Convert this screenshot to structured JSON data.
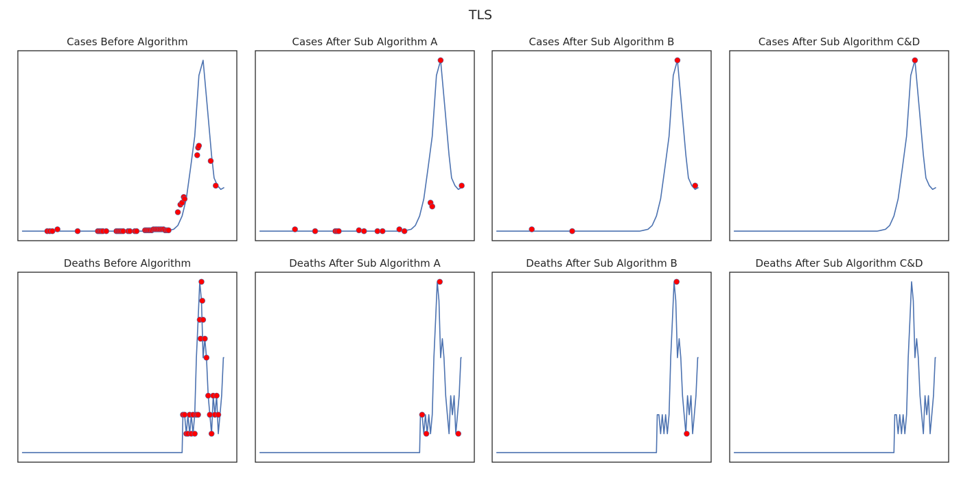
{
  "figure": {
    "title": "TLS"
  },
  "colors": {
    "line": "#4c72b0",
    "marker": "#ff0000",
    "frame": "#262626",
    "background": "#ffffff"
  },
  "chart_data": [
    {
      "type": "line",
      "title": "Cases Before Algorithm",
      "xlabel": "",
      "ylabel": "",
      "grid": false,
      "xlim": [
        -5,
        255
      ],
      "ylim": [
        -5,
        95
      ],
      "x": [
        0,
        5,
        10,
        15,
        20,
        25,
        30,
        35,
        40,
        45,
        50,
        55,
        60,
        65,
        70,
        75,
        80,
        85,
        90,
        95,
        100,
        105,
        110,
        115,
        120,
        125,
        130,
        135,
        140,
        145,
        150,
        155,
        160,
        165,
        170,
        175,
        180,
        185,
        190,
        195,
        200,
        205,
        210,
        215,
        220,
        225,
        228,
        232,
        236,
        240
      ],
      "y": [
        0,
        0,
        0,
        0,
        0,
        0,
        0,
        0,
        0,
        0,
        0,
        0,
        0,
        0,
        0,
        0,
        0,
        0,
        0,
        0,
        0,
        0,
        0,
        0,
        0,
        0,
        0,
        0,
        0,
        0,
        0,
        0,
        0,
        0,
        0,
        0.5,
        1,
        3,
        8,
        17,
        33,
        50,
        82,
        90,
        65,
        40,
        28,
        24,
        22,
        23
      ],
      "outliers": {
        "x": [
          30,
          33,
          36,
          42,
          66,
          90,
          92,
          94,
          96,
          100,
          112,
          114,
          116,
          118,
          120,
          126,
          128,
          134,
          136,
          146,
          148,
          150,
          152,
          154,
          156,
          158,
          160,
          162,
          164,
          166,
          168,
          170,
          172,
          174,
          185,
          188,
          190,
          192,
          193,
          208,
          209,
          210,
          224,
          230
        ],
        "y": [
          0,
          0,
          0,
          1,
          0,
          0,
          0,
          0,
          0,
          0,
          0,
          0,
          0,
          0,
          0,
          0,
          0,
          0,
          0,
          0.5,
          0.5,
          0.5,
          0.5,
          0.5,
          1,
          1,
          1,
          1,
          1,
          1,
          1,
          0.5,
          0.5,
          0.5,
          10,
          14,
          15,
          18,
          17,
          40,
          44,
          45,
          37,
          24
        ]
      }
    },
    {
      "type": "line",
      "title": "Cases After Sub Algorithm A",
      "xlabel": "",
      "ylabel": "",
      "grid": false,
      "xlim": [
        -5,
        255
      ],
      "ylim": [
        -5,
        95
      ],
      "x": [
        0,
        5,
        10,
        15,
        20,
        25,
        30,
        35,
        40,
        45,
        50,
        55,
        60,
        65,
        70,
        75,
        80,
        85,
        90,
        95,
        100,
        105,
        110,
        115,
        120,
        125,
        130,
        135,
        140,
        145,
        150,
        155,
        160,
        165,
        170,
        175,
        180,
        185,
        190,
        195,
        200,
        205,
        210,
        215,
        220,
        225,
        228,
        232,
        236,
        240
      ],
      "y": [
        0,
        0,
        0,
        0,
        0,
        0,
        0,
        0,
        0,
        0,
        0,
        0,
        0,
        0,
        0,
        0,
        0,
        0,
        0,
        0,
        0,
        0,
        0,
        0,
        0,
        0,
        0,
        0,
        0,
        0,
        0,
        0,
        0,
        0,
        0,
        0.5,
        1,
        3,
        8,
        17,
        33,
        50,
        82,
        90,
        65,
        40,
        28,
        24,
        22,
        23
      ],
      "outliers": {
        "x": [
          42,
          66,
          90,
          92,
          94,
          118,
          124,
          140,
          146,
          166,
          172,
          203,
          205,
          215,
          240
        ],
        "y": [
          1,
          0,
          0,
          0,
          0,
          0.5,
          0,
          0,
          0,
          1,
          0,
          15,
          13,
          90,
          24
        ]
      }
    },
    {
      "type": "line",
      "title": "Cases After Sub Algorithm B",
      "xlabel": "",
      "ylabel": "",
      "grid": false,
      "xlim": [
        -5,
        255
      ],
      "ylim": [
        -5,
        95
      ],
      "x": [
        0,
        5,
        10,
        15,
        20,
        25,
        30,
        35,
        40,
        45,
        50,
        55,
        60,
        65,
        70,
        75,
        80,
        85,
        90,
        95,
        100,
        105,
        110,
        115,
        120,
        125,
        130,
        135,
        140,
        145,
        150,
        155,
        160,
        165,
        170,
        175,
        180,
        185,
        190,
        195,
        200,
        205,
        210,
        215,
        220,
        225,
        228,
        232,
        236,
        240
      ],
      "y": [
        0,
        0,
        0,
        0,
        0,
        0,
        0,
        0,
        0,
        0,
        0,
        0,
        0,
        0,
        0,
        0,
        0,
        0,
        0,
        0,
        0,
        0,
        0,
        0,
        0,
        0,
        0,
        0,
        0,
        0,
        0,
        0,
        0,
        0,
        0,
        0.5,
        1,
        3,
        8,
        17,
        33,
        50,
        82,
        90,
        65,
        40,
        28,
        24,
        22,
        23
      ],
      "outliers": {
        "x": [
          42,
          90,
          215,
          236
        ],
        "y": [
          1,
          0,
          90,
          24
        ]
      }
    },
    {
      "type": "line",
      "title": "Cases After Sub Algorithm C&D",
      "xlabel": "",
      "ylabel": "",
      "grid": false,
      "xlim": [
        -5,
        255
      ],
      "ylim": [
        -5,
        95
      ],
      "x": [
        0,
        5,
        10,
        15,
        20,
        25,
        30,
        35,
        40,
        45,
        50,
        55,
        60,
        65,
        70,
        75,
        80,
        85,
        90,
        95,
        100,
        105,
        110,
        115,
        120,
        125,
        130,
        135,
        140,
        145,
        150,
        155,
        160,
        165,
        170,
        175,
        180,
        185,
        190,
        195,
        200,
        205,
        210,
        215,
        220,
        225,
        228,
        232,
        236,
        240
      ],
      "y": [
        0,
        0,
        0,
        0,
        0,
        0,
        0,
        0,
        0,
        0,
        0,
        0,
        0,
        0,
        0,
        0,
        0,
        0,
        0,
        0,
        0,
        0,
        0,
        0,
        0,
        0,
        0,
        0,
        0,
        0,
        0,
        0,
        0,
        0,
        0,
        0.5,
        1,
        3,
        8,
        17,
        33,
        50,
        82,
        90,
        65,
        40,
        28,
        24,
        22,
        23
      ],
      "outliers": {
        "x": [
          215
        ],
        "y": [
          90
        ]
      }
    },
    {
      "type": "line",
      "title": "Deaths Before Algorithm",
      "xlabel": "",
      "ylabel": "",
      "grid": false,
      "xlim": [
        -5,
        255
      ],
      "ylim": [
        -0.5,
        9.5
      ],
      "x": [
        0,
        50,
        100,
        150,
        180,
        190,
        191,
        193,
        195,
        197,
        199,
        201,
        203,
        205,
        207,
        209,
        211,
        213,
        215,
        217,
        219,
        221,
        223,
        225,
        227,
        229,
        231,
        233,
        235,
        237,
        239,
        240
      ],
      "y": [
        0,
        0,
        0,
        0,
        0,
        0,
        2,
        2,
        1,
        2,
        1,
        2,
        1,
        2,
        5,
        7,
        9,
        8,
        5,
        6,
        5,
        3,
        2,
        1,
        3,
        2,
        3,
        1,
        2,
        3,
        5,
        5
      ],
      "outliers": {
        "x": [
          191,
          193,
          195,
          197,
          199,
          201,
          203,
          205,
          207,
          209,
          211,
          212,
          213,
          214,
          215,
          217,
          219,
          221,
          223,
          225,
          227,
          229,
          231,
          233
        ],
        "y": [
          2,
          2,
          1,
          1,
          2,
          1,
          2,
          1,
          2,
          2,
          7,
          6,
          9,
          8,
          7,
          6,
          5,
          3,
          2,
          1,
          3,
          2,
          3,
          2
        ]
      }
    },
    {
      "type": "line",
      "title": "Deaths After Sub Algorithm A",
      "xlabel": "",
      "ylabel": "",
      "grid": false,
      "xlim": [
        -5,
        255
      ],
      "ylim": [
        -0.5,
        9.5
      ],
      "x": [
        0,
        50,
        100,
        150,
        180,
        190,
        191,
        193,
        195,
        197,
        199,
        201,
        203,
        205,
        207,
        209,
        211,
        213,
        215,
        217,
        219,
        221,
        223,
        225,
        227,
        229,
        231,
        233,
        235,
        237,
        239,
        240
      ],
      "y": [
        0,
        0,
        0,
        0,
        0,
        0,
        2,
        2,
        1,
        2,
        1,
        2,
        1,
        2,
        5,
        7,
        9,
        8,
        5,
        6,
        5,
        3,
        2,
        1,
        3,
        2,
        3,
        1,
        2,
        3,
        5,
        5
      ],
      "outliers": {
        "x": [
          193,
          198,
          214,
          236
        ],
        "y": [
          2,
          1,
          9,
          1
        ]
      }
    },
    {
      "type": "line",
      "title": "Deaths After Sub Algorithm B",
      "xlabel": "",
      "ylabel": "",
      "grid": false,
      "xlim": [
        -5,
        255
      ],
      "ylim": [
        -0.5,
        9.5
      ],
      "x": [
        0,
        50,
        100,
        150,
        180,
        190,
        191,
        193,
        195,
        197,
        199,
        201,
        203,
        205,
        207,
        209,
        211,
        213,
        215,
        217,
        219,
        221,
        223,
        225,
        227,
        229,
        231,
        233,
        235,
        237,
        239,
        240
      ],
      "y": [
        0,
        0,
        0,
        0,
        0,
        0,
        2,
        2,
        1,
        2,
        1,
        2,
        1,
        2,
        5,
        7,
        9,
        8,
        5,
        6,
        5,
        3,
        2,
        1,
        3,
        2,
        3,
        1,
        2,
        3,
        5,
        5
      ],
      "outliers": {
        "x": [
          214,
          226
        ],
        "y": [
          9,
          1
        ]
      }
    },
    {
      "type": "line",
      "title": "Deaths After Sub Algorithm C&D",
      "xlabel": "",
      "ylabel": "",
      "grid": false,
      "xlim": [
        -5,
        255
      ],
      "ylim": [
        -0.5,
        9.5
      ],
      "x": [
        0,
        50,
        100,
        150,
        180,
        190,
        191,
        193,
        195,
        197,
        199,
        201,
        203,
        205,
        207,
        209,
        211,
        213,
        215,
        217,
        219,
        221,
        223,
        225,
        227,
        229,
        231,
        233,
        235,
        237,
        239,
        240
      ],
      "y": [
        0,
        0,
        0,
        0,
        0,
        0,
        2,
        2,
        1,
        2,
        1,
        2,
        1,
        2,
        5,
        7,
        9,
        8,
        5,
        6,
        5,
        3,
        2,
        1,
        3,
        2,
        3,
        1,
        2,
        3,
        5,
        5
      ],
      "outliers": {
        "x": [],
        "y": []
      }
    }
  ]
}
